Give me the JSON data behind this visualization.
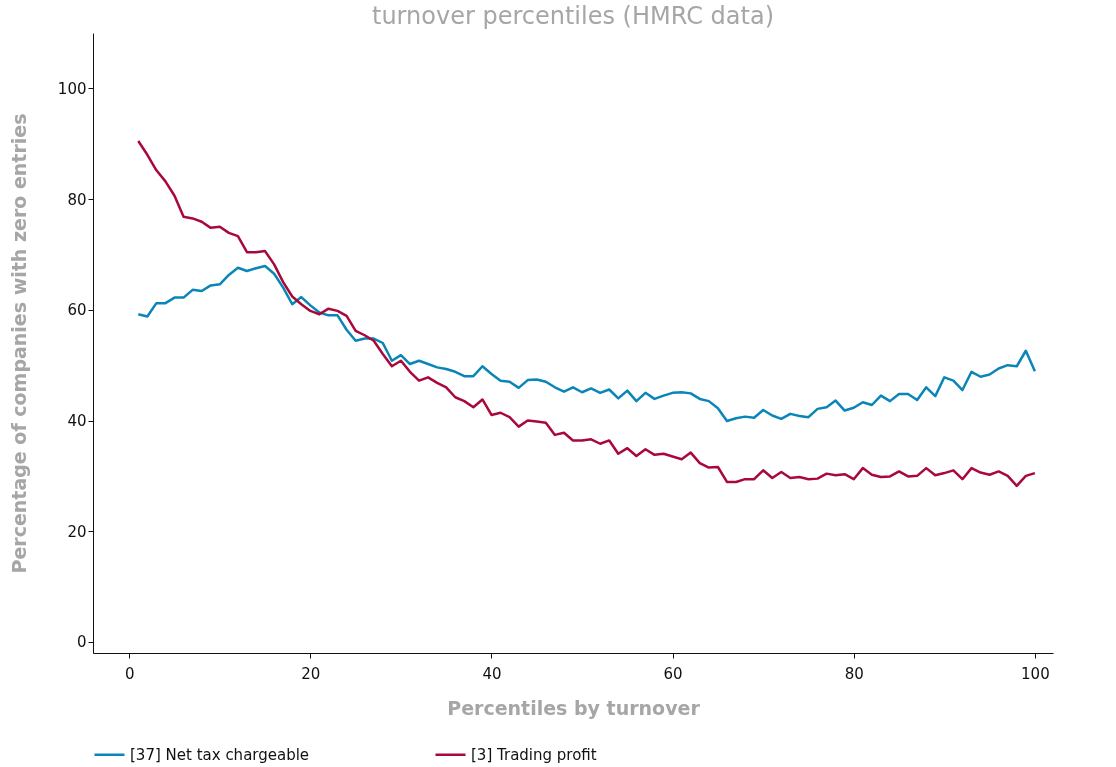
{
  "chart_data": {
    "type": "line",
    "title": "turnover percentiles (HMRC data)",
    "xlabel": "Percentiles by turnover",
    "ylabel": "Percentage of companies with zero entries",
    "x": [
      1,
      2,
      3,
      4,
      5,
      6,
      7,
      8,
      9,
      10,
      11,
      12,
      13,
      14,
      15,
      16,
      17,
      18,
      19,
      20,
      21,
      22,
      23,
      24,
      25,
      26,
      27,
      28,
      29,
      30,
      31,
      32,
      33,
      34,
      35,
      36,
      37,
      38,
      39,
      40,
      41,
      42,
      43,
      44,
      45,
      46,
      47,
      48,
      49,
      50,
      51,
      52,
      53,
      54,
      55,
      56,
      57,
      58,
      59,
      60,
      61,
      62,
      63,
      64,
      65,
      66,
      67,
      68,
      69,
      70,
      71,
      72,
      73,
      74,
      75,
      76,
      77,
      78,
      79,
      80,
      81,
      82,
      83,
      84,
      85,
      86,
      87,
      88,
      89,
      90,
      91,
      92,
      93,
      94,
      95,
      96,
      97,
      98,
      99,
      100
    ],
    "series": [
      {
        "name": "[37] Net tax chargeable",
        "color": "#0a85b8",
        "values": [
          59.2,
          58.8,
          61.2,
          61.2,
          62.2,
          62.2,
          63.6,
          63.4,
          64.4,
          64.6,
          66.3,
          67.6,
          67.0,
          67.5,
          67.9,
          66.5,
          64.0,
          61.0,
          62.3,
          60.8,
          59.5,
          59.0,
          59.0,
          56.4,
          54.4,
          54.8,
          54.8,
          54.0,
          50.8,
          51.8,
          50.2,
          50.8,
          50.2,
          49.6,
          49.3,
          48.8,
          48.0,
          48.0,
          49.8,
          48.4,
          47.2,
          47.0,
          45.9,
          47.3,
          47.4,
          47.0,
          46.0,
          45.2,
          46.0,
          45.1,
          45.8,
          45.0,
          45.6,
          44.0,
          45.4,
          43.5,
          45.0,
          43.9,
          44.5,
          45.0,
          45.1,
          44.9,
          43.9,
          43.5,
          42.2,
          39.9,
          40.4,
          40.7,
          40.5,
          41.9,
          40.9,
          40.3,
          41.2,
          40.8,
          40.6,
          42.1,
          42.4,
          43.6,
          41.8,
          42.3,
          43.3,
          42.8,
          44.5,
          43.5,
          44.8,
          44.8,
          43.7,
          46.0,
          44.4,
          47.8,
          47.2,
          45.5,
          48.8,
          47.9,
          48.3,
          49.4,
          50.0,
          49.8,
          52.6,
          48.9
        ]
      },
      {
        "name": "[3] Trading profit",
        "color": "#a8093a",
        "values": [
          90.5,
          88.0,
          85.2,
          83.2,
          80.6,
          76.8,
          76.5,
          75.9,
          74.8,
          75.0,
          73.9,
          73.3,
          70.4,
          70.4,
          70.6,
          68.2,
          65.0,
          62.4,
          61.0,
          59.8,
          59.2,
          60.2,
          59.8,
          58.9,
          56.2,
          55.4,
          54.4,
          52.0,
          49.8,
          50.8,
          48.8,
          47.2,
          47.8,
          46.8,
          46.0,
          44.2,
          43.5,
          42.4,
          43.8,
          41.0,
          41.4,
          40.6,
          38.9,
          40.0,
          39.8,
          39.6,
          37.4,
          37.8,
          36.4,
          36.4,
          36.6,
          35.8,
          36.4,
          34.0,
          35.0,
          33.6,
          34.8,
          33.8,
          34.0,
          33.5,
          33.0,
          34.2,
          32.3,
          31.5,
          31.6,
          28.9,
          28.9,
          29.4,
          29.4,
          31.0,
          29.6,
          30.7,
          29.6,
          29.8,
          29.4,
          29.5,
          30.4,
          30.1,
          30.3,
          29.4,
          31.4,
          30.2,
          29.8,
          29.9,
          30.8,
          29.9,
          30.0,
          31.4,
          30.1,
          30.5,
          31.0,
          29.4,
          31.4,
          30.6,
          30.2,
          30.8,
          30.0,
          28.2,
          30.0,
          30.5
        ]
      }
    ],
    "xlim": [
      -4,
      102
    ],
    "xticks": [
      0,
      20,
      40,
      60,
      80,
      100
    ],
    "ylim": [
      -2,
      110
    ],
    "yticks": [
      0,
      20,
      40,
      60,
      80,
      100
    ],
    "grid": false,
    "legend": "bottom",
    "marker": "none",
    "line_style": "solid"
  }
}
